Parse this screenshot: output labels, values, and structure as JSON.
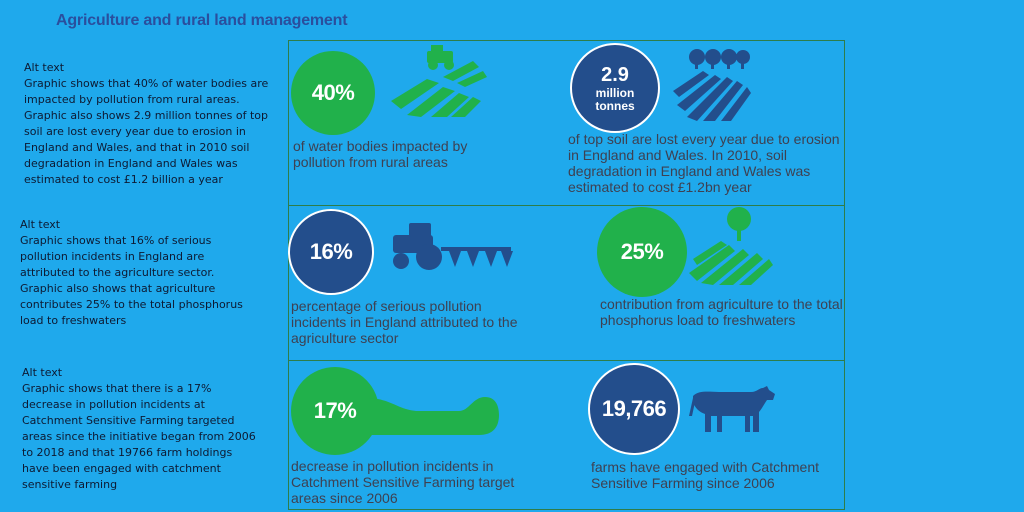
{
  "title": "Agriculture and rural land management",
  "alt_text_blocks": [
    {
      "heading": "Alt text",
      "body": "Graphic shows that 40% of water bodies are impacted by pollution from rural areas. Graphic also shows 2.9 million tonnes of top soil are lost every year due to erosion in England and Wales, and that in 2010 soil degradation in England and Wales was estimated to cost £1.2 billion a year"
    },
    {
      "heading": "Alt text",
      "body": "Graphic shows that 16% of serious pollution incidents in England are attributed to the agriculture sector. Graphic also shows that agriculture contributes 25% to the total phosphorus load to freshwaters"
    },
    {
      "heading": "Alt text",
      "body": "Graphic shows that there is a 17% decrease in pollution incidents at Catchment Sensitive Farming targeted areas since the initiative began from 2006 to 2018 and that 19766 farm holdings have been engaged with catchment sensitive farming"
    }
  ],
  "stats": [
    {
      "value": "40%",
      "text": "of water bodies impacted by pollution from rural areas",
      "icon": "tractor-field-icon"
    },
    {
      "value_main": "2.9",
      "value_sub1": "million",
      "value_sub2": "tonnes",
      "text": "of top soil are lost every year due to erosion in England and Wales. In 2010, soil degradation in England and Wales was estimated to cost £1.2bn year",
      "icon": "trees-field-icon"
    },
    {
      "value": "16%",
      "text": "percentage of serious pollution incidents in England attributed to the agriculture sector",
      "icon": "tractor-plough-icon"
    },
    {
      "value": "25%",
      "text": "contribution from agriculture to the total phosphorus load to freshwaters",
      "icon": "tree-field-icon"
    },
    {
      "value": "17%",
      "text": "decrease in pollution incidents in Catchment Sensitive Farming target areas since 2006",
      "icon": "river-icon"
    },
    {
      "value": "19,766",
      "text": "farms have engaged with Catchment Sensitive Farming since 2006",
      "icon": "cow-icon"
    }
  ],
  "colors": {
    "background": "#1fa9ec",
    "green": "#21b14b",
    "navy": "#234e8c",
    "title": "#2a4f9e",
    "text": "#3e4152"
  }
}
